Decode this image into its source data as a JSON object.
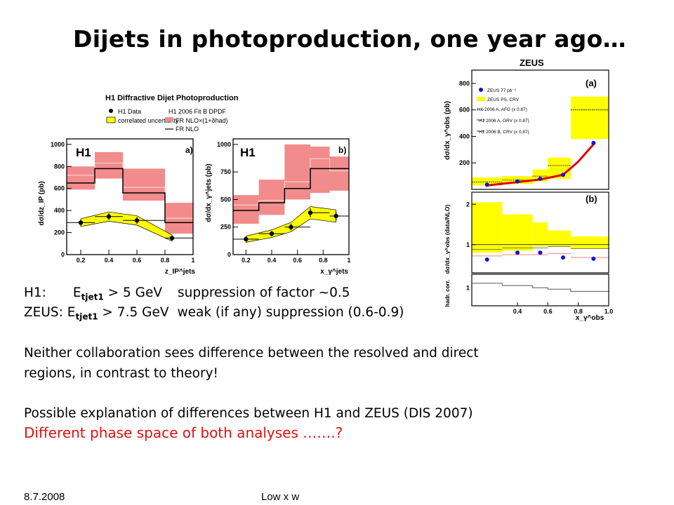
{
  "slide": {
    "title": "Dijets in photoproduction, one year ago…",
    "h1_label": "H1:",
    "h1_et_var": "E",
    "h1_et_sub": "tjet1",
    "h1_cut": " > 5 GeV",
    "h1_comment": "suppression of factor ~0.5",
    "zeus_label": "ZEUS: ",
    "zeus_et_var": "E",
    "zeus_et_sub": "tjet1",
    "zeus_cut": " > 7.5 GeV",
    "zeus_comment": "weak (if any) suppression (0.6-0.9)",
    "para1_line1": "Neither collaboration sees difference between the resolved and direct",
    "para1_line2": "regions, in contrast to theory!",
    "para2_line1": "Possible explanation of differences between H1 and ZEUS (DIS 2007)",
    "para2_line2": "Different phase space of both analyses …….?",
    "footer_date": "8.7.2008",
    "footer_center": "Low x w"
  },
  "colors": {
    "band_red": "#f28b8b",
    "band_yellow": "#ffff00",
    "zeus_fit": "#e00000",
    "zeus_points": "#1010e0"
  },
  "chart_data": [
    {
      "type": "bar",
      "title": "H1 Diffractive Dijet Photoproduction",
      "panel_label": "H1",
      "panel_letter": "a)",
      "ylabel": "dσ/dz_IP (pb)",
      "xlabel": "z_IP^jets",
      "legend": [
        "H1 Data",
        "correlated uncertainty",
        "H1 2006 Fit B DPDF",
        "FR NLO×(1+δhad)",
        "FR NLO"
      ],
      "xlim": [
        0.1,
        1.0
      ],
      "ylim": [
        0,
        1050
      ],
      "xticks": [
        "0.2",
        "0.4",
        "0.6",
        "0.8",
        "1"
      ],
      "yticks": [
        "0",
        "200",
        "400",
        "600",
        "800",
        "1000"
      ],
      "bin_edges": [
        0.1,
        0.3,
        0.5,
        0.8,
        1.0
      ],
      "nlo_had": [
        720,
        830,
        610,
        330
      ],
      "nlo": [
        650,
        780,
        560,
        290
      ],
      "band_lo": [
        590,
        690,
        490,
        190
      ],
      "band_hi": [
        800,
        930,
        780,
        470
      ],
      "data_x": [
        0.2,
        0.4,
        0.6,
        0.85
      ],
      "data_y": [
        290,
        345,
        310,
        150
      ],
      "data_err": [
        25,
        30,
        30,
        20
      ]
    },
    {
      "type": "bar",
      "panel_label": "H1",
      "panel_letter": "b)",
      "ylabel": "dσ/dx_γ^jets (pb)",
      "xlabel": "x_γ^jets",
      "xlim": [
        0.1,
        1.0
      ],
      "ylim": [
        0,
        1050
      ],
      "xticks": [
        "0.2",
        "0.4",
        "0.6",
        "0.8",
        "1"
      ],
      "yticks": [
        "0",
        "250",
        "500",
        "750",
        "1000"
      ],
      "bin_edges": [
        0.1,
        0.3,
        0.5,
        0.7,
        0.85,
        1.0
      ],
      "nlo_had": [
        450,
        490,
        660,
        870,
        760
      ],
      "nlo": [
        400,
        470,
        600,
        780,
        780
      ],
      "band_lo": [
        280,
        360,
        500,
        560,
        580
      ],
      "band_hi": [
        540,
        680,
        1000,
        980,
        890
      ],
      "data_x": [
        0.2,
        0.4,
        0.55,
        0.7,
        0.9
      ],
      "data_y": [
        140,
        190,
        250,
        380,
        350
      ],
      "data_err": [
        20,
        25,
        30,
        40,
        40
      ]
    },
    {
      "type": "bar",
      "title": "ZEUS",
      "panel_letter": "(a)",
      "ylabel": "dσ/dx_γ^obs (pb)",
      "legend": [
        "ZEUS 77 pb⁻¹",
        "ZEUS PS, CRV",
        "H1 2006 A, AFG (x 0.87)",
        "H1 2006 A, GRV (x 0.87)",
        "H1 2006 B, CRV (x 0.87)"
      ],
      "xlim": [
        0.1,
        1.0
      ],
      "ylim": [
        0,
        900
      ],
      "yticks": [
        "200",
        "400",
        "600",
        "800"
      ],
      "bin_edges": [
        0.1,
        0.3,
        0.5,
        0.6,
        0.75,
        1.0
      ],
      "band_lo": [
        30,
        40,
        60,
        80,
        380
      ],
      "band_hi": [
        90,
        100,
        150,
        240,
        700
      ],
      "nlo": [
        55,
        70,
        100,
        180,
        600
      ],
      "data_x": [
        0.2,
        0.4,
        0.55,
        0.7,
        0.9
      ],
      "data_y": [
        35,
        60,
        80,
        110,
        350
      ],
      "fit_x": [
        0.2,
        0.4,
        0.55,
        0.7,
        0.8,
        0.9
      ],
      "fit_y": [
        30,
        55,
        75,
        110,
        210,
        340
      ]
    },
    {
      "type": "bar",
      "panel_letter": "(b)",
      "ylabel": "dσ/dx_γ^obs (data/NLO)",
      "xlim": [
        0.1,
        1.0
      ],
      "ylim": [
        0.3,
        2.3
      ],
      "yticks": [
        "1",
        "2"
      ],
      "bin_edges": [
        0.1,
        0.3,
        0.5,
        0.6,
        0.75,
        1.0
      ],
      "band_lo": [
        0.8,
        0.85,
        0.95,
        0.95,
        0.9
      ],
      "band_hi": [
        2.05,
        1.75,
        1.55,
        1.35,
        1.2
      ],
      "line_a": [
        0.72,
        0.75,
        0.75,
        0.78,
        0.68
      ],
      "line_b": [
        0.88,
        0.92,
        0.92,
        0.95,
        0.9
      ],
      "data_x": [
        0.2,
        0.4,
        0.55,
        0.7,
        0.9
      ],
      "data_y": [
        0.63,
        0.8,
        0.8,
        0.68,
        0.65
      ]
    },
    {
      "type": "bar",
      "ylabel": "hadr. corr.",
      "xlabel": "x_γ^obs",
      "xlim": [
        0.1,
        1.0
      ],
      "ylim": [
        0.6,
        1.3
      ],
      "yticks": [
        "1"
      ],
      "xticks": [
        "0.4",
        "0.6",
        "0.8",
        "1.0"
      ],
      "bin_edges": [
        0.1,
        0.3,
        0.5,
        0.6,
        0.75,
        1.0
      ],
      "values": [
        1.1,
        1.05,
        1.0,
        0.97,
        0.92
      ]
    }
  ]
}
